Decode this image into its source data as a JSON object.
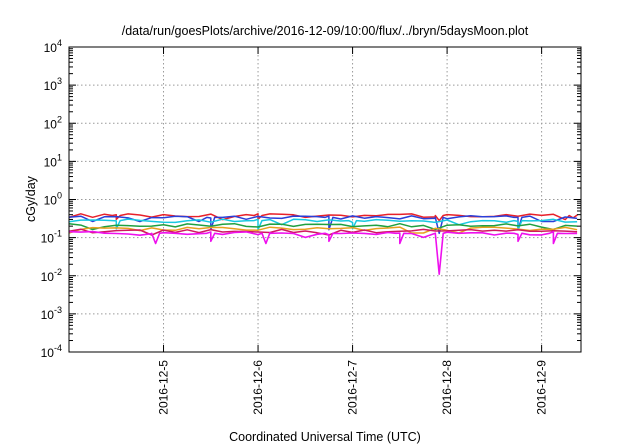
{
  "chart_data": {
    "type": "line",
    "title": "/data/run/goesPlots/archive/2016-12-09/10:00/flux/../bryn/5daysMoon.plot",
    "xlabel": "Coordinated Universal Time (UTC)",
    "ylabel": "cGy/day",
    "yscale": "log",
    "ylim": [
      0.0001,
      10000
    ],
    "y_ticks": [
      {
        "base": "10",
        "exp": "-4",
        "value": 0.0001
      },
      {
        "base": "10",
        "exp": "-3",
        "value": 0.001
      },
      {
        "base": "10",
        "exp": "-2",
        "value": 0.01
      },
      {
        "base": "10",
        "exp": "-1",
        "value": 0.1
      },
      {
        "base": "10",
        "exp": "0",
        "value": 1
      },
      {
        "base": "10",
        "exp": "1",
        "value": 10
      },
      {
        "base": "10",
        "exp": "2",
        "value": 100
      },
      {
        "base": "10",
        "exp": "3",
        "value": 1000
      },
      {
        "base": "10",
        "exp": "4",
        "value": 10000
      }
    ],
    "xlim": [
      "2016-12-04T00:00",
      "2016-12-09T10:00"
    ],
    "x_ticks": [
      "2016-12-5",
      "2016-12-6",
      "2016-12-7",
      "2016-12-8",
      "2016-12-9"
    ],
    "x_tick_dates": [
      "2016-12-05T00:00",
      "2016-12-06T00:00",
      "2016-12-07T00:00",
      "2016-12-08T00:00",
      "2016-12-09T00:00"
    ],
    "grid": true,
    "legend": "none",
    "series": [
      {
        "color": "#e8202a",
        "typical": 0.38,
        "dips": [
          {
            "date": "2016-12-04T12:00",
            "value": 0.3
          },
          {
            "date": "2016-12-06T00:00",
            "value": 0.3
          },
          {
            "date": "2016-12-07T22:00",
            "value": 0.28
          },
          {
            "date": "2016-12-09T08:00",
            "value": 0.33
          }
        ]
      },
      {
        "color": "#2a3fd8",
        "typical": 0.34,
        "dips": [
          {
            "date": "2016-12-05T12:00",
            "value": 0.16
          },
          {
            "date": "2016-12-06T18:00",
            "value": 0.16
          },
          {
            "date": "2016-12-07T22:00",
            "value": 0.13
          },
          {
            "date": "2016-12-08T18:00",
            "value": 0.16
          }
        ]
      },
      {
        "color": "#18c8e0",
        "typical": 0.28,
        "dips": [
          {
            "date": "2016-12-04T12:00",
            "value": 0.17
          },
          {
            "date": "2016-12-06T00:00",
            "value": 0.16
          },
          {
            "date": "2016-12-07T00:00",
            "value": 0.17
          },
          {
            "date": "2016-12-08T18:00",
            "value": 0.16
          }
        ]
      },
      {
        "color": "#20a040",
        "typical": 0.21,
        "dips": []
      },
      {
        "color": "#e8a020",
        "typical": 0.17,
        "dips": []
      },
      {
        "color": "#d01860",
        "typical": 0.15,
        "dips": []
      },
      {
        "color": "#ee10ee",
        "typical": 0.13,
        "dips": [
          {
            "date": "2016-12-04T22:00",
            "value": 0.07
          },
          {
            "date": "2016-12-05T12:00",
            "value": 0.08
          },
          {
            "date": "2016-12-06T02:00",
            "value": 0.07
          },
          {
            "date": "2016-12-06T18:00",
            "value": 0.08
          },
          {
            "date": "2016-12-07T12:00",
            "value": 0.07
          },
          {
            "date": "2016-12-07T22:00",
            "value": 0.011
          },
          {
            "date": "2016-12-08T18:00",
            "value": 0.08
          },
          {
            "date": "2016-12-09T03:00",
            "value": 0.07
          }
        ]
      }
    ]
  }
}
